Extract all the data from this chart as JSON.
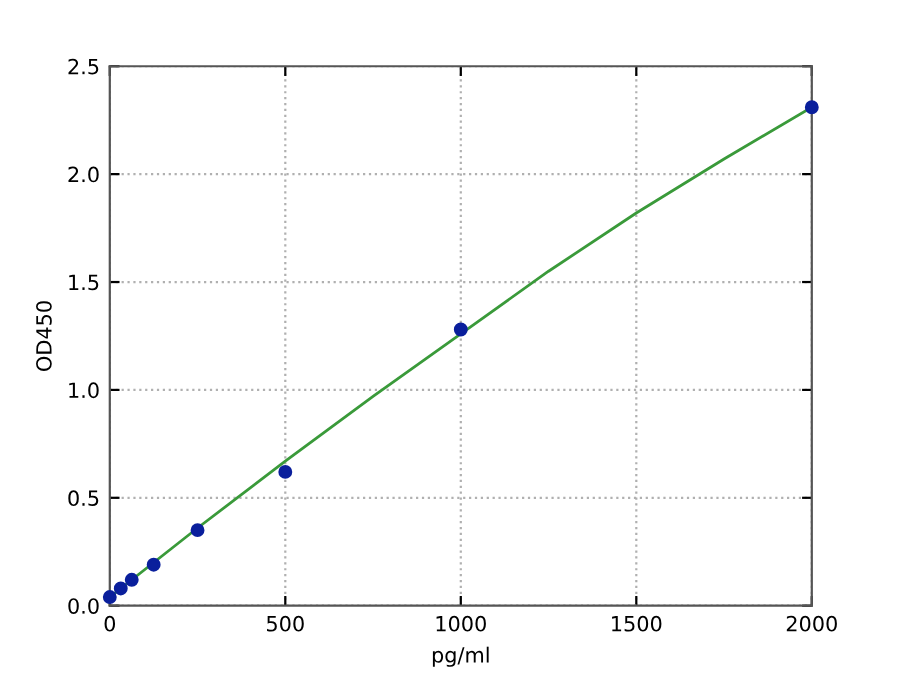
{
  "chart_data": {
    "type": "scatter",
    "xlabel": "pg/ml",
    "ylabel": "OD450",
    "series": [
      {
        "color": "#0a1f9c",
        "marker": "circle",
        "x": [
          0,
          31.25,
          62.5,
          125,
          250,
          500,
          1000,
          2000
        ],
        "values": [
          0.04,
          0.08,
          0.12,
          0.19,
          0.35,
          0.62,
          1.28,
          2.31
        ]
      },
      {
        "type": "line",
        "color": "#3a9a3a",
        "marker": "none",
        "x": [
          0,
          250,
          500,
          750,
          1000,
          1250,
          1500,
          1750,
          2000
        ],
        "values": [
          0.04,
          0.36,
          0.67,
          0.97,
          1.26,
          1.55,
          1.82,
          2.07,
          2.31
        ]
      }
    ],
    "xlim": [
      0,
      2000
    ],
    "xticks": [
      0,
      500,
      1000,
      1500,
      2000
    ],
    "ylim": [
      0.0,
      2.5
    ],
    "yticks": [
      {
        "value": 0,
        "label": "0.0"
      },
      {
        "value": 0.5,
        "label": "0.5"
      },
      {
        "value": 1,
        "label": "1.0"
      },
      {
        "value": 1.5,
        "label": "1.5"
      },
      {
        "value": 2,
        "label": "2.0"
      },
      {
        "value": 2.5,
        "label": "2.5"
      }
    ],
    "grid": true
  }
}
